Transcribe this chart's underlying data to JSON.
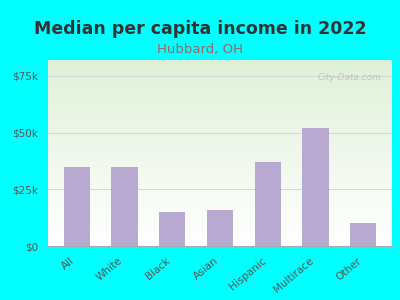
{
  "title": "Median per capita income in 2022",
  "subtitle": "Hubbard, OH",
  "categories": [
    "All",
    "White",
    "Black",
    "Asian",
    "Hispanic",
    "Multirace",
    "Other"
  ],
  "values": [
    35000,
    35000,
    15000,
    16000,
    37000,
    52000,
    10000
  ],
  "bar_color": "#b8a9d0",
  "background_color": "#00FFFF",
  "chart_bg_color": "#dff0d8",
  "title_color": "#333333",
  "subtitle_color": "#996666",
  "ytick_labels": [
    "$0",
    "$25k",
    "$50k",
    "$75k"
  ],
  "ytick_values": [
    0,
    25000,
    50000,
    75000
  ],
  "ylim": [
    0,
    82000
  ],
  "watermark": "City-Data.com",
  "title_fontsize": 12.5,
  "subtitle_fontsize": 9.5,
  "tick_fontsize": 7.5
}
